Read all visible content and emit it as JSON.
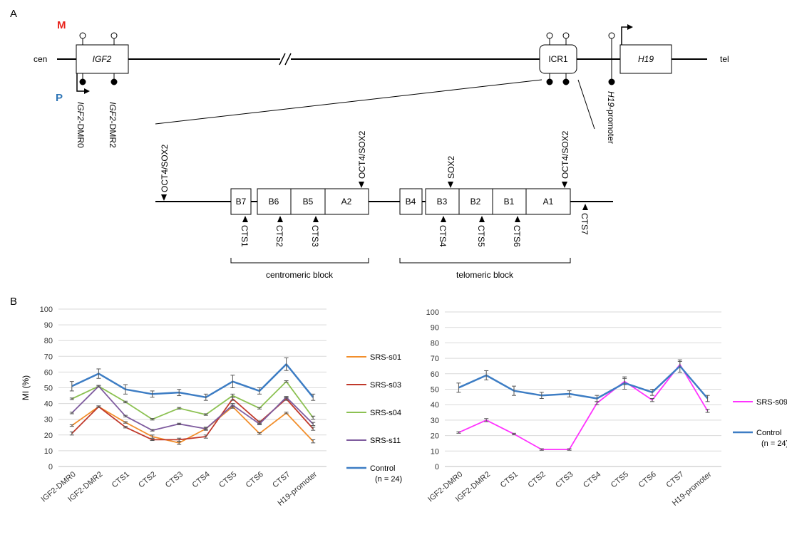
{
  "panel_a": {
    "label": "A",
    "maternal": "M",
    "paternal": "P",
    "cen": "cen",
    "tel": "tel",
    "igf2": "IGF2",
    "icr1": "ICR1",
    "h19": "H19",
    "dmr0": {
      "gene": "IGF2",
      "suffix": "-DMR0"
    },
    "dmr2": {
      "gene": "IGF2",
      "suffix": "-DMR2"
    },
    "h19_promoter": {
      "gene": "H19",
      "suffix": "-promoter"
    },
    "tf_labels": [
      "OCT4/SOX2",
      "OCT4/SOX2",
      "SOX2",
      "OCT4/SOX2"
    ],
    "blocks": [
      "B7",
      "B6",
      "B5",
      "A2",
      "B4",
      "B3",
      "B2",
      "B1",
      "A1"
    ],
    "cts": [
      "CTS1",
      "CTS2",
      "CTS3",
      "CTS4",
      "CTS5",
      "CTS6",
      "CTS7"
    ],
    "centromeric_block": "centromeric block",
    "telomeric_block": "telomeric block",
    "colors": {
      "maternal": "#e8241c",
      "paternal": "#2e75b6"
    }
  },
  "panel_b": {
    "label": "B"
  },
  "chart_data": [
    {
      "type": "line",
      "ylabel": "MI (%)",
      "ylim": [
        0,
        100
      ],
      "yticks": [
        0,
        10,
        20,
        30,
        40,
        50,
        60,
        70,
        80,
        90,
        100
      ],
      "grid": true,
      "legend": "right",
      "categories": [
        "IGF2-DMR0",
        "IGF2-DMR2",
        "CTS1",
        "CTS2",
        "CTS3",
        "CTS4",
        "CTS5",
        "CTS6",
        "CTS7",
        "H19-promoter"
      ],
      "series": [
        {
          "name": "SRS-s01",
          "color": "#f28e2b",
          "values": [
            26,
            38,
            28,
            19,
            15,
            24,
            38,
            21,
            34,
            16
          ],
          "err": [
            0.5,
            0.5,
            0.5,
            1,
            1,
            1,
            1,
            0.5,
            0.5,
            1
          ]
        },
        {
          "name": "SRS-s03",
          "color": "#c0392b",
          "values": [
            21,
            38,
            25,
            17,
            17,
            19,
            43,
            28,
            43,
            24
          ],
          "err": [
            1,
            0.5,
            0.5,
            0.5,
            1,
            1,
            1,
            1,
            1,
            1
          ]
        },
        {
          "name": "SRS-s04",
          "color": "#8cc152",
          "values": [
            43,
            51,
            41,
            30,
            37,
            33,
            45,
            37,
            54,
            31
          ],
          "err": [
            0.5,
            0.5,
            0.5,
            0.5,
            0.5,
            0.5,
            1,
            0.5,
            0.5,
            1
          ]
        },
        {
          "name": "SRS-s11",
          "color": "#7e5b9e",
          "values": [
            34,
            51,
            32,
            23,
            27,
            24,
            39,
            27,
            44,
            27
          ],
          "err": [
            0.5,
            0.5,
            0.5,
            0.5,
            0.5,
            0.5,
            1,
            0.5,
            0.5,
            1
          ]
        },
        {
          "name": "Control",
          "name2": "(n = 24)",
          "color": "#3d7dc4",
          "values": [
            51,
            59,
            49,
            46,
            47,
            44,
            54,
            48,
            65,
            44
          ],
          "err": [
            3,
            3,
            3,
            2,
            2,
            2,
            4,
            2,
            4,
            2
          ]
        }
      ]
    },
    {
      "type": "line",
      "ylabel": "",
      "ylim": [
        0,
        100
      ],
      "yticks": [
        0,
        10,
        20,
        30,
        40,
        50,
        60,
        70,
        80,
        90,
        100
      ],
      "grid": true,
      "legend": "right",
      "categories": [
        "IGF2-DMR0",
        "IGF2-DMR2",
        "CTS1",
        "CTS2",
        "CTS3",
        "CTS4",
        "CTS5",
        "CTS6",
        "CTS7",
        "H19-promoter"
      ],
      "series": [
        {
          "name": "SRS-s09",
          "color": "#ff33ff",
          "values": [
            22,
            30,
            21,
            11,
            11,
            41,
            55,
            43,
            66,
            36
          ],
          "err": [
            0.5,
            1,
            0.5,
            0.5,
            0.5,
            1,
            2,
            1,
            2,
            1
          ]
        },
        {
          "name": "Control",
          "name2": "(n = 24)",
          "color": "#3d7dc4",
          "values": [
            51,
            59,
            49,
            46,
            47,
            44,
            54,
            48,
            65,
            44
          ],
          "err": [
            3,
            3,
            3,
            2,
            2,
            2,
            4,
            2,
            4,
            2
          ]
        }
      ]
    }
  ]
}
